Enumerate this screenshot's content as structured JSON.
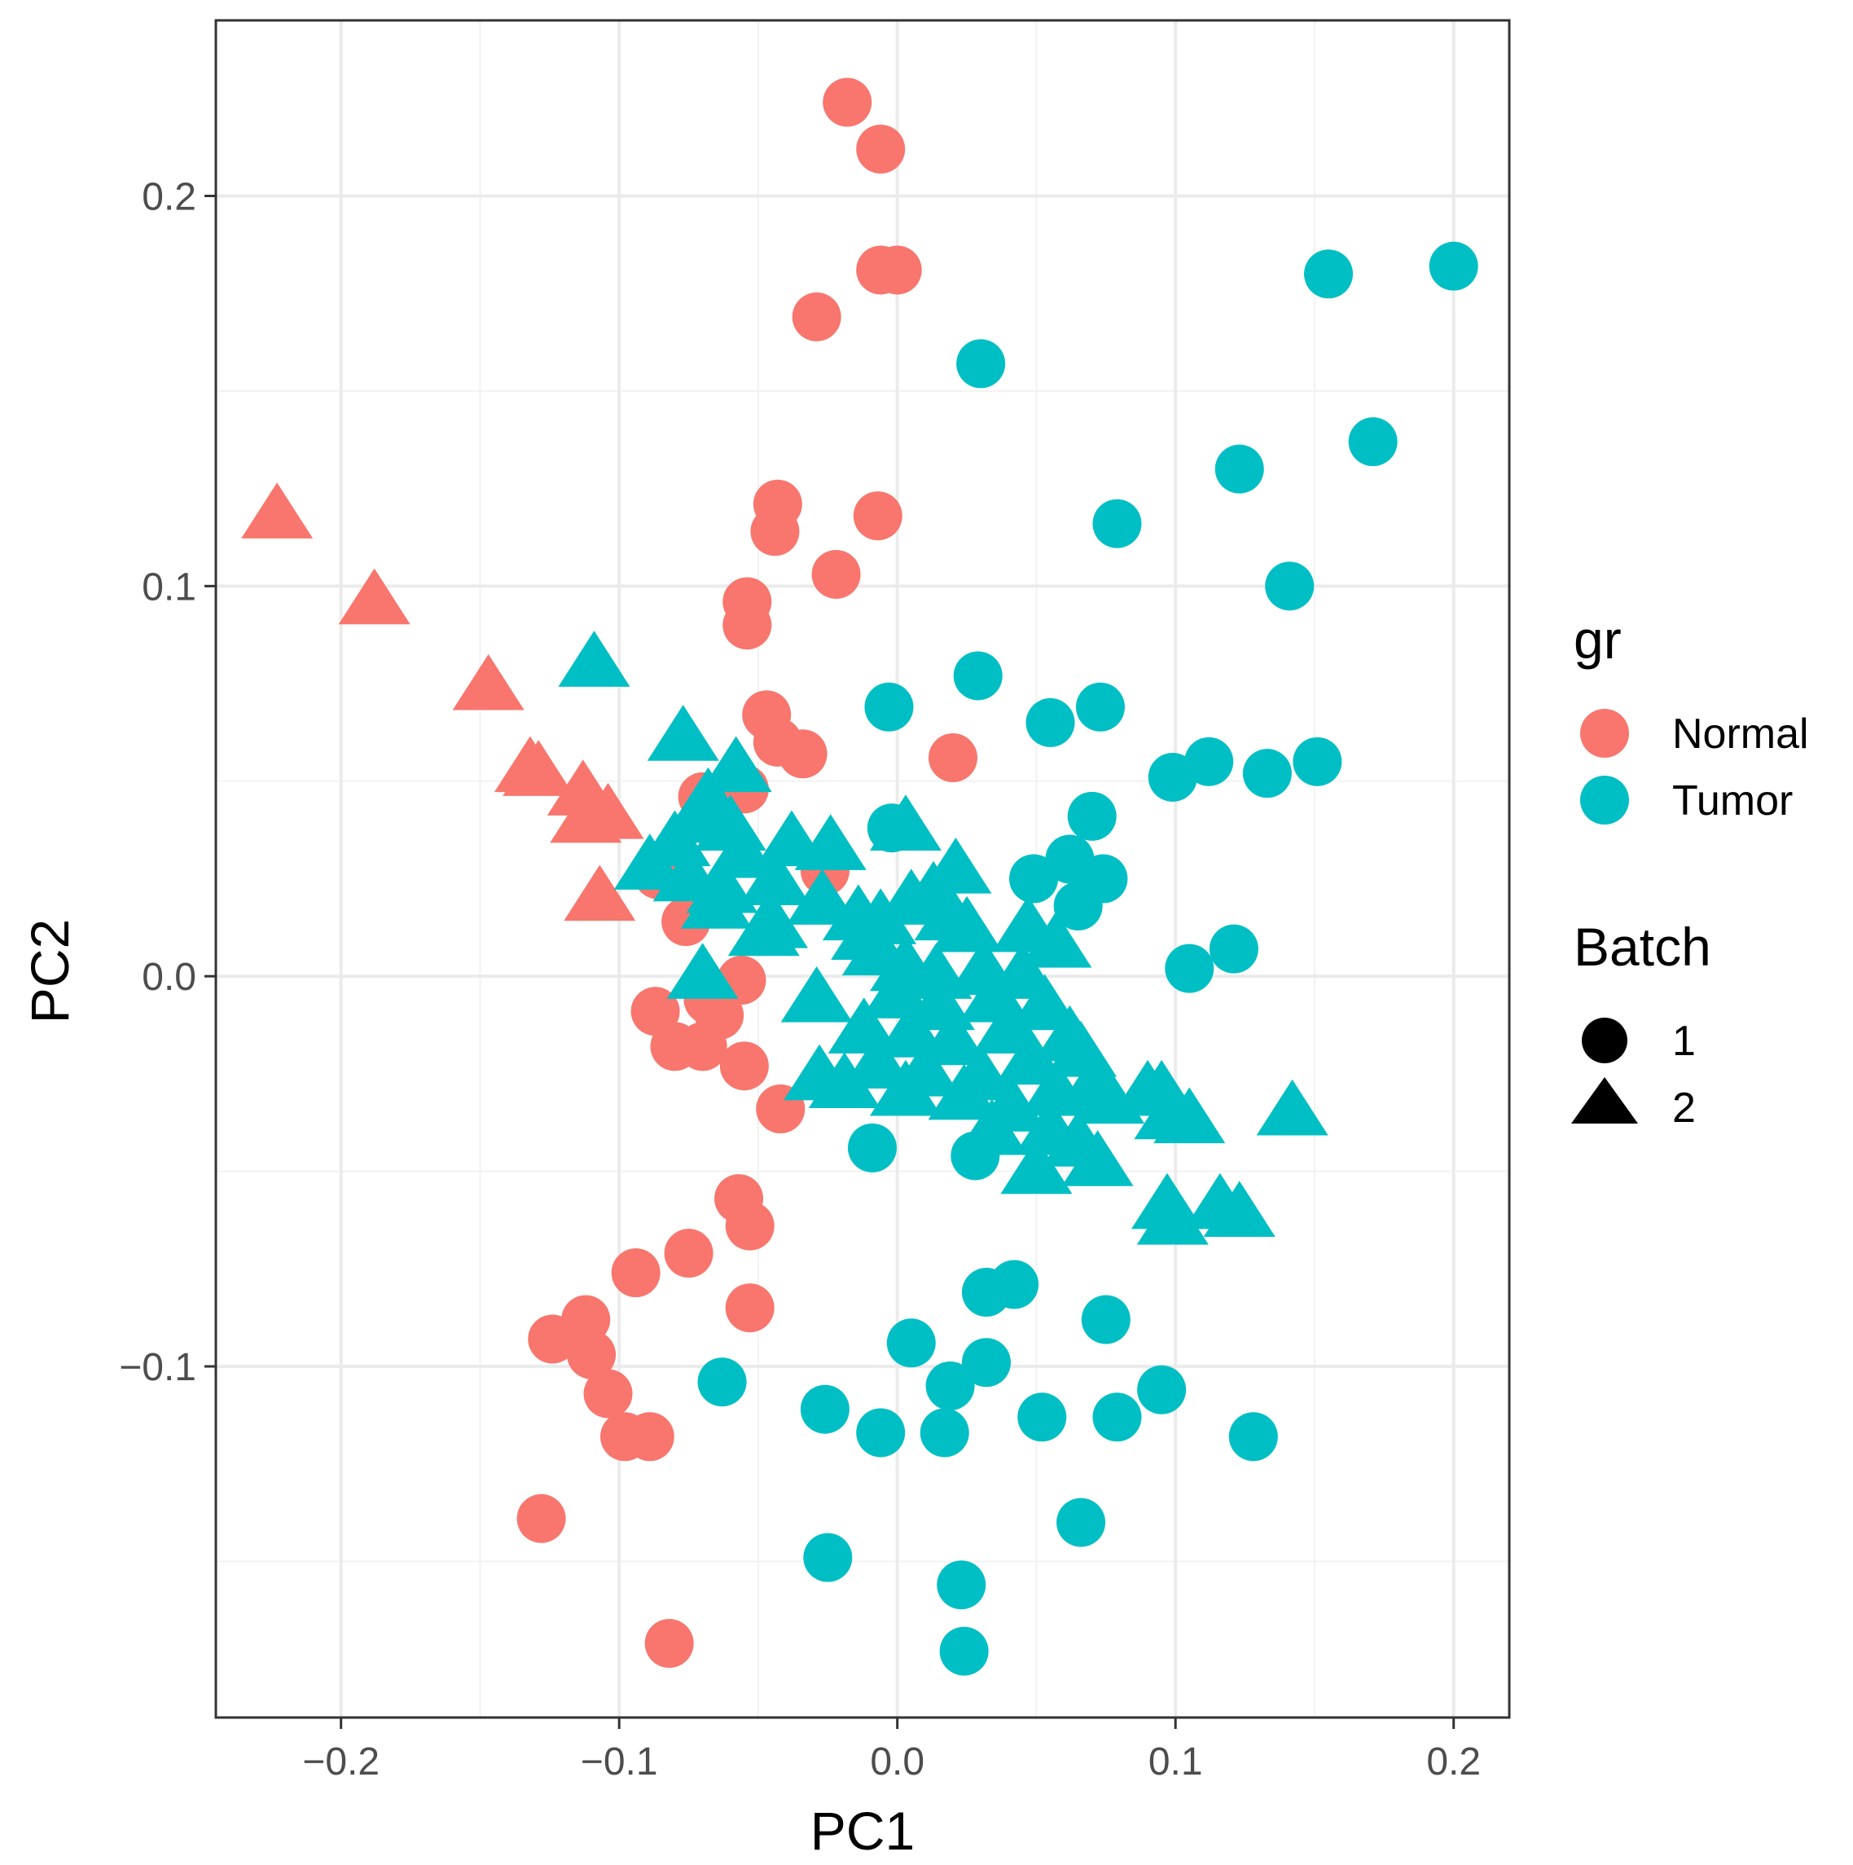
{
  "chart_data": {
    "type": "scatter",
    "title": "",
    "xlabel": "PC1",
    "ylabel": "PC2",
    "xlim": [
      -0.245,
      0.22
    ],
    "ylim": [
      -0.19,
      0.245
    ],
    "x_ticks": [
      -0.2,
      -0.1,
      0.0,
      0.1,
      0.2
    ],
    "y_ticks": [
      -0.1,
      0.0,
      0.1,
      0.2
    ],
    "x_tick_labels": [
      "−0.2",
      "−0.1",
      "0.0",
      "0.1",
      "0.2"
    ],
    "y_tick_labels": [
      "−0.1",
      "0.0",
      "0.1",
      "0.2"
    ],
    "grid": true,
    "colors": {
      "Normal": "#F8766D",
      "Tumor": "#00BFC4"
    },
    "legend": {
      "position": "right",
      "color_title": "gr",
      "color_entries": [
        "Normal",
        "Tumor"
      ],
      "shape_title": "Batch",
      "shape_entries": [
        "1",
        "2"
      ]
    },
    "series": [
      {
        "name": "Normal - Batch 1",
        "group": "Normal",
        "batch": "1",
        "shape": "circle",
        "points": [
          [
            -0.018,
            0.224
          ],
          [
            -0.006,
            0.212
          ],
          [
            -0.006,
            0.181
          ],
          [
            0.0,
            0.181
          ],
          [
            -0.029,
            0.169
          ],
          [
            -0.043,
            0.121
          ],
          [
            -0.044,
            0.114
          ],
          [
            -0.007,
            0.118
          ],
          [
            -0.022,
            0.103
          ],
          [
            -0.054,
            0.096
          ],
          [
            -0.054,
            0.09
          ],
          [
            -0.047,
            0.067
          ],
          [
            -0.043,
            0.06
          ],
          [
            -0.034,
            0.057
          ],
          [
            0.02,
            0.056
          ],
          [
            -0.07,
            0.046
          ],
          [
            -0.055,
            0.048
          ],
          [
            -0.086,
            0.026
          ],
          [
            -0.026,
            0.027
          ],
          [
            -0.076,
            0.014
          ],
          [
            -0.056,
            -0.001
          ],
          [
            -0.087,
            -0.009
          ],
          [
            -0.068,
            -0.006
          ],
          [
            -0.064,
            -0.01
          ],
          [
            -0.08,
            -0.018
          ],
          [
            -0.07,
            -0.018
          ],
          [
            -0.055,
            -0.023
          ],
          [
            -0.042,
            -0.034
          ],
          [
            -0.057,
            -0.057
          ],
          [
            -0.053,
            -0.064
          ],
          [
            -0.094,
            -0.076
          ],
          [
            -0.075,
            -0.071
          ],
          [
            -0.053,
            -0.085
          ],
          [
            -0.124,
            -0.093
          ],
          [
            -0.112,
            -0.088
          ],
          [
            -0.11,
            -0.097
          ],
          [
            -0.104,
            -0.107
          ],
          [
            -0.098,
            -0.118
          ],
          [
            -0.089,
            -0.118
          ],
          [
            -0.128,
            -0.139
          ],
          [
            -0.082,
            -0.171
          ]
        ]
      },
      {
        "name": "Normal - Batch 2",
        "group": "Normal",
        "batch": "2",
        "shape": "triangle",
        "points": [
          [
            -0.223,
            0.118
          ],
          [
            -0.188,
            0.096
          ],
          [
            -0.147,
            0.074
          ],
          [
            -0.132,
            0.053
          ],
          [
            -0.129,
            0.052
          ],
          [
            -0.113,
            0.047
          ],
          [
            -0.104,
            0.041
          ],
          [
            -0.112,
            0.04
          ],
          [
            -0.107,
            0.02
          ]
        ]
      },
      {
        "name": "Tumor - Batch 1",
        "group": "Tumor",
        "batch": "1",
        "shape": "circle",
        "points": [
          [
            0.2,
            0.182
          ],
          [
            0.155,
            0.18
          ],
          [
            0.03,
            0.157
          ],
          [
            0.171,
            0.137
          ],
          [
            0.123,
            0.13
          ],
          [
            0.079,
            0.116
          ],
          [
            0.141,
            0.1
          ],
          [
            0.029,
            0.077
          ],
          [
            -0.003,
            0.069
          ],
          [
            0.073,
            0.069
          ],
          [
            0.055,
            0.065
          ],
          [
            0.112,
            0.055
          ],
          [
            0.099,
            0.051
          ],
          [
            0.133,
            0.052
          ],
          [
            0.151,
            0.055
          ],
          [
            0.07,
            0.041
          ],
          [
            -0.002,
            0.038
          ],
          [
            0.062,
            0.03
          ],
          [
            0.049,
            0.025
          ],
          [
            0.074,
            0.025
          ],
          [
            0.065,
            0.018
          ],
          [
            0.121,
            0.007
          ],
          [
            0.105,
            0.002
          ],
          [
            -0.009,
            -0.044
          ],
          [
            0.028,
            -0.046
          ],
          [
            0.042,
            -0.079
          ],
          [
            0.032,
            -0.081
          ],
          [
            0.075,
            -0.088
          ],
          [
            0.005,
            -0.094
          ],
          [
            0.032,
            -0.099
          ],
          [
            0.019,
            -0.105
          ],
          [
            0.095,
            -0.106
          ],
          [
            -0.063,
            -0.104
          ],
          [
            -0.026,
            -0.111
          ],
          [
            0.052,
            -0.113
          ],
          [
            0.079,
            -0.113
          ],
          [
            -0.006,
            -0.117
          ],
          [
            0.017,
            -0.117
          ],
          [
            0.128,
            -0.118
          ],
          [
            0.066,
            -0.14
          ],
          [
            -0.025,
            -0.149
          ],
          [
            0.023,
            -0.156
          ],
          [
            0.024,
            -0.173
          ]
        ]
      },
      {
        "name": "Tumor - Batch 2",
        "group": "Tumor",
        "batch": "2",
        "shape": "triangle",
        "points": [
          [
            -0.109,
            0.08
          ],
          [
            -0.077,
            0.061
          ],
          [
            -0.058,
            0.053
          ],
          [
            -0.068,
            0.045
          ],
          [
            -0.072,
            0.04
          ],
          [
            -0.06,
            0.038
          ],
          [
            -0.08,
            0.034
          ],
          [
            -0.056,
            0.031
          ],
          [
            -0.089,
            0.028
          ],
          [
            -0.075,
            0.025
          ],
          [
            -0.063,
            0.022
          ],
          [
            -0.044,
            0.024
          ],
          [
            -0.065,
            0.018
          ],
          [
            -0.045,
            0.013
          ],
          [
            -0.048,
            0.011
          ],
          [
            -0.07,
            0.0
          ],
          [
            -0.038,
            0.034
          ],
          [
            -0.024,
            0.033
          ],
          [
            -0.027,
            0.019
          ],
          [
            0.003,
            0.038
          ],
          [
            0.021,
            0.027
          ],
          [
            0.013,
            0.021
          ],
          [
            0.005,
            0.019
          ],
          [
            0.019,
            0.015
          ],
          [
            -0.006,
            0.014
          ],
          [
            -0.014,
            0.015
          ],
          [
            -0.011,
            0.01
          ],
          [
            0.025,
            0.012
          ],
          [
            0.047,
            0.012
          ],
          [
            0.057,
            0.008
          ],
          [
            -0.007,
            0.006
          ],
          [
            0.003,
            0.002
          ],
          [
            0.014,
            0.0
          ],
          [
            0.031,
            0.001
          ],
          [
            0.045,
            0.0
          ],
          [
            -0.029,
            -0.006
          ],
          [
            0.0,
            -0.005
          ],
          [
            0.015,
            -0.008
          ],
          [
            0.035,
            -0.006
          ],
          [
            0.053,
            -0.008
          ],
          [
            -0.012,
            -0.014
          ],
          [
            0.005,
            -0.015
          ],
          [
            0.02,
            -0.017
          ],
          [
            0.04,
            -0.014
          ],
          [
            0.062,
            -0.016
          ],
          [
            -0.007,
            -0.023
          ],
          [
            0.01,
            -0.025
          ],
          [
            0.03,
            -0.026
          ],
          [
            0.048,
            -0.022
          ],
          [
            0.066,
            -0.02
          ],
          [
            -0.019,
            -0.028
          ],
          [
            0.003,
            -0.03
          ],
          [
            0.024,
            -0.031
          ],
          [
            0.041,
            -0.034
          ],
          [
            0.057,
            -0.03
          ],
          [
            0.07,
            -0.029
          ],
          [
            0.076,
            -0.032
          ],
          [
            -0.028,
            -0.026
          ],
          [
            0.09,
            -0.03
          ],
          [
            0.095,
            -0.03
          ],
          [
            0.098,
            -0.036
          ],
          [
            0.105,
            -0.037
          ],
          [
            0.142,
            -0.035
          ],
          [
            0.034,
            -0.04
          ],
          [
            0.055,
            -0.04
          ],
          [
            0.065,
            -0.043
          ],
          [
            0.05,
            -0.05
          ],
          [
            0.072,
            -0.048
          ],
          [
            0.097,
            -0.059
          ],
          [
            0.099,
            -0.063
          ],
          [
            0.116,
            -0.059
          ],
          [
            0.123,
            -0.061
          ]
        ]
      }
    ]
  }
}
